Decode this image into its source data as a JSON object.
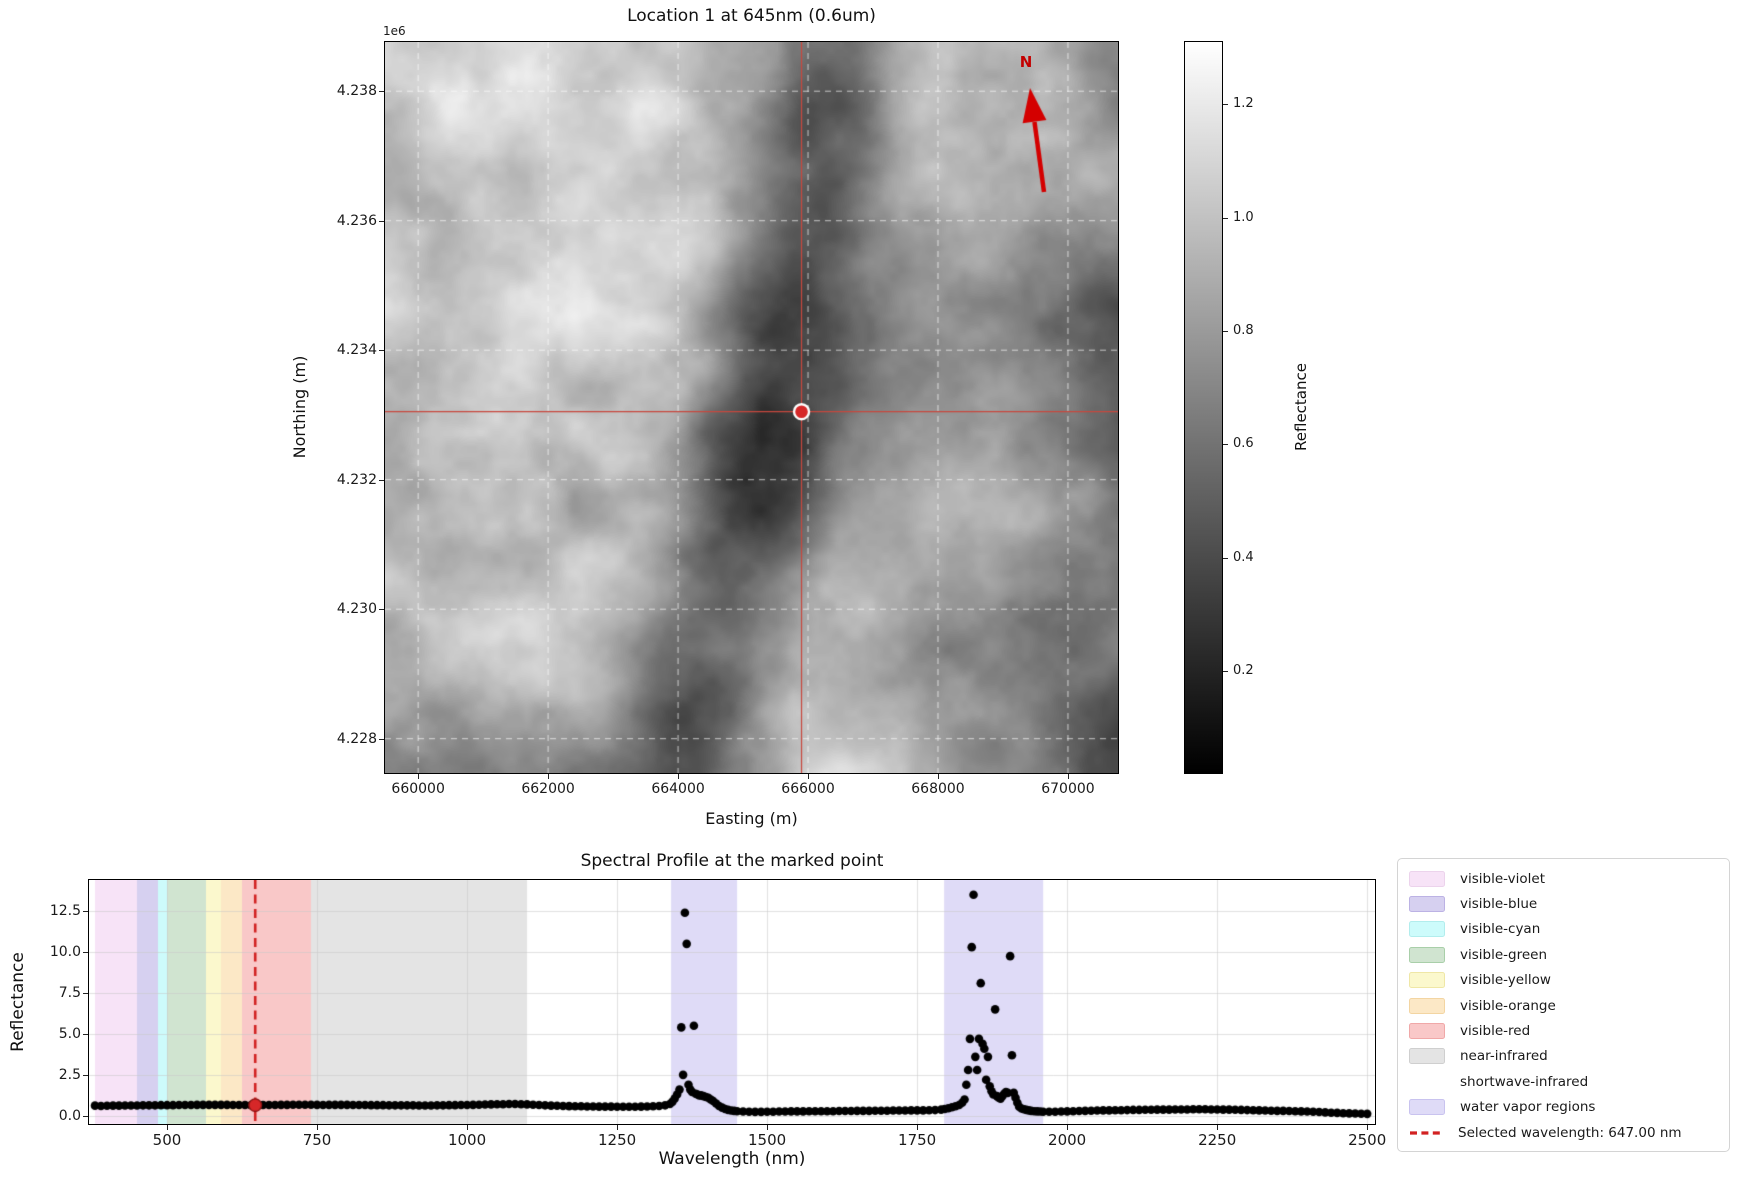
{
  "chart_data": [
    {
      "type": "heatmap",
      "title": "Location 1 at 645nm (0.6um)",
      "xlabel": "Easting (m)",
      "ylabel": "Northing (m)",
      "offset_text": "1e6",
      "north_label": "N",
      "cmap": "gray",
      "grid": "white-dashed",
      "xlim": [
        659490,
        670770
      ],
      "ylim": [
        4227470,
        4238760
      ],
      "x_ticks": [
        660000,
        662000,
        664000,
        666000,
        668000,
        670000
      ],
      "x_tick_labels": [
        "660000",
        "662000",
        "664000",
        "666000",
        "668000",
        "670000"
      ],
      "y_ticks": [
        4238000,
        4236000,
        4234000,
        4232000,
        4230000,
        4228000
      ],
      "y_tick_labels": [
        "4.238",
        "4.236",
        "4.234",
        "4.232",
        "4.230",
        "4.228"
      ],
      "marker": {
        "easting": 665900,
        "northing": 4233050,
        "color": "#d62728",
        "edge": "#ffffff"
      },
      "crosshair_color": "#c8473d",
      "colorbar": {
        "label": "Reflectance",
        "vmin": 0.02,
        "vmax": 1.31,
        "ticks": [
          1.2,
          1.0,
          0.8,
          0.6,
          0.4,
          0.2
        ],
        "tick_labels": [
          "1.2",
          "1.0",
          "0.8",
          "0.6",
          "0.4",
          "0.2"
        ]
      }
    },
    {
      "type": "scatter",
      "title": "Spectral Profile at the marked point",
      "xlabel": "Wavelength (nm)",
      "ylabel": "Reflectance",
      "xlim": [
        370,
        2513
      ],
      "ylim": [
        -0.5,
        14.4
      ],
      "grid": true,
      "point_color": "#000000",
      "x_ticks": [
        500,
        750,
        1000,
        1250,
        1500,
        1750,
        2000,
        2250,
        2500
      ],
      "x_tick_labels": [
        "500",
        "750",
        "1000",
        "1250",
        "1500",
        "1750",
        "2000",
        "2250",
        "2500"
      ],
      "y_ticks": [
        0.0,
        2.5,
        5.0,
        7.5,
        10.0,
        12.5
      ],
      "y_tick_labels": [
        "0.0",
        "2.5",
        "5.0",
        "7.5",
        "10.0",
        "12.5"
      ],
      "bands": [
        {
          "name": "shortwave-infrared",
          "xmin": 1100,
          "xmax": 2500,
          "color": "#ffffff"
        },
        {
          "name": "visible-violet",
          "xmin": 380,
          "xmax": 450,
          "color": "#f7e3f7"
        },
        {
          "name": "visible-blue",
          "xmin": 450,
          "xmax": 485,
          "color": "#d6d0f0"
        },
        {
          "name": "visible-cyan",
          "xmin": 485,
          "xmax": 500,
          "color": "#cdfbfb"
        },
        {
          "name": "visible-green",
          "xmin": 500,
          "xmax": 565,
          "color": "#d0e4d0"
        },
        {
          "name": "visible-yellow",
          "xmin": 565,
          "xmax": 590,
          "color": "#fbf8cd"
        },
        {
          "name": "visible-orange",
          "xmin": 590,
          "xmax": 625,
          "color": "#fce8c6"
        },
        {
          "name": "visible-red",
          "xmin": 625,
          "xmax": 740,
          "color": "#f9c8c8"
        },
        {
          "name": "near-infrared",
          "xmin": 740,
          "xmax": 1100,
          "color": "#e4e4e4"
        },
        {
          "name": "water-vapor-region-1",
          "xmin": 1340,
          "xmax": 1450,
          "color": "#dfdbf7"
        },
        {
          "name": "water-vapor-region-2",
          "xmin": 1795,
          "xmax": 1960,
          "color": "#dfdbf7"
        }
      ],
      "selected": {
        "wavelength": 647.0,
        "reflectance": 0.65,
        "line_color": "#d22222",
        "marker_color": "#d62728",
        "label": "Selected wavelength: 647.00 nm"
      },
      "legend": [
        {
          "label": "visible-violet",
          "kind": "patch",
          "color": "#f7e3f7",
          "border": "#ecd3ec"
        },
        {
          "label": "visible-blue",
          "kind": "patch",
          "color": "#d6d0f0",
          "border": "#bcb2e4"
        },
        {
          "label": "visible-cyan",
          "kind": "patch",
          "color": "#cdfbfb",
          "border": "#b2eded"
        },
        {
          "label": "visible-green",
          "kind": "patch",
          "color": "#d0e4d0",
          "border": "#a9cfa9"
        },
        {
          "label": "visible-yellow",
          "kind": "patch",
          "color": "#fbf8cd",
          "border": "#efe7a6"
        },
        {
          "label": "visible-orange",
          "kind": "patch",
          "color": "#fce8c6",
          "border": "#f3d5a2"
        },
        {
          "label": "visible-red",
          "kind": "patch",
          "color": "#f9c8c8",
          "border": "#f0a8a8"
        },
        {
          "label": "near-infrared",
          "kind": "patch",
          "color": "#e4e4e4",
          "border": "#cfcfcf"
        },
        {
          "label": "shortwave-infrared",
          "kind": "patch",
          "color": "#ffffff",
          "border": "transparent"
        },
        {
          "label": "water vapor regions",
          "kind": "patch",
          "color": "#dfdbf7",
          "border": "#c9c3ef"
        },
        {
          "label": "Selected wavelength: 647.00 nm",
          "kind": "dash",
          "color": "#d22222"
        }
      ],
      "x": [
        380,
        390,
        400,
        410,
        420,
        430,
        440,
        450,
        460,
        470,
        480,
        490,
        500,
        510,
        520,
        530,
        540,
        550,
        560,
        570,
        580,
        590,
        600,
        610,
        620,
        630,
        640,
        650,
        660,
        670,
        680,
        690,
        700,
        710,
        720,
        730,
        740,
        750,
        760,
        770,
        780,
        790,
        800,
        810,
        820,
        830,
        840,
        850,
        860,
        870,
        880,
        890,
        900,
        910,
        920,
        930,
        940,
        950,
        960,
        970,
        980,
        990,
        1000,
        1010,
        1020,
        1030,
        1040,
        1050,
        1060,
        1070,
        1080,
        1090,
        1100,
        1110,
        1120,
        1130,
        1140,
        1150,
        1160,
        1170,
        1180,
        1190,
        1200,
        1210,
        1220,
        1230,
        1240,
        1250,
        1260,
        1270,
        1280,
        1290,
        1300,
        1310,
        1320,
        1330,
        1338,
        1342,
        1346,
        1350,
        1354,
        1357,
        1360,
        1363,
        1366,
        1369,
        1372,
        1375,
        1378,
        1381,
        1384,
        1387,
        1390,
        1394,
        1398,
        1402,
        1406,
        1410,
        1415,
        1420,
        1425,
        1430,
        1435,
        1440,
        1445,
        1450,
        1460,
        1470,
        1480,
        1490,
        1500,
        1510,
        1520,
        1530,
        1540,
        1550,
        1560,
        1570,
        1580,
        1590,
        1600,
        1610,
        1620,
        1630,
        1640,
        1650,
        1660,
        1670,
        1680,
        1690,
        1700,
        1710,
        1720,
        1730,
        1740,
        1750,
        1760,
        1770,
        1780,
        1790,
        1796,
        1802,
        1808,
        1814,
        1820,
        1825,
        1829,
        1832,
        1835,
        1838,
        1841,
        1844,
        1847,
        1850,
        1853,
        1856,
        1859,
        1862,
        1865,
        1868,
        1871,
        1874,
        1877,
        1880,
        1883,
        1886,
        1889,
        1892,
        1895,
        1898,
        1901,
        1905,
        1908,
        1911,
        1914,
        1917,
        1920,
        1924,
        1928,
        1932,
        1936,
        1940,
        1945,
        1950,
        1955,
        1960,
        1970,
        1980,
        1990,
        2000,
        2010,
        2020,
        2030,
        2040,
        2050,
        2060,
        2070,
        2080,
        2090,
        2100,
        2110,
        2120,
        2130,
        2140,
        2150,
        2160,
        2170,
        2180,
        2190,
        2200,
        2210,
        2220,
        2230,
        2240,
        2250,
        2260,
        2270,
        2280,
        2290,
        2300,
        2310,
        2320,
        2330,
        2340,
        2350,
        2360,
        2370,
        2380,
        2390,
        2400,
        2410,
        2420,
        2430,
        2440,
        2450,
        2460,
        2470,
        2480,
        2490,
        2500
      ],
      "y": [
        0.62,
        0.6,
        0.61,
        0.62,
        0.62,
        0.63,
        0.63,
        0.63,
        0.64,
        0.64,
        0.64,
        0.65,
        0.65,
        0.65,
        0.66,
        0.66,
        0.66,
        0.67,
        0.67,
        0.67,
        0.67,
        0.67,
        0.67,
        0.66,
        0.66,
        0.66,
        0.65,
        0.65,
        0.66,
        0.66,
        0.66,
        0.67,
        0.67,
        0.68,
        0.68,
        0.68,
        0.68,
        0.67,
        0.66,
        0.67,
        0.67,
        0.67,
        0.67,
        0.66,
        0.66,
        0.66,
        0.65,
        0.65,
        0.65,
        0.64,
        0.64,
        0.64,
        0.64,
        0.64,
        0.63,
        0.63,
        0.63,
        0.64,
        0.64,
        0.65,
        0.65,
        0.66,
        0.66,
        0.67,
        0.68,
        0.69,
        0.7,
        0.71,
        0.71,
        0.72,
        0.72,
        0.71,
        0.7,
        0.68,
        0.66,
        0.64,
        0.62,
        0.61,
        0.6,
        0.59,
        0.58,
        0.58,
        0.57,
        0.57,
        0.56,
        0.56,
        0.56,
        0.55,
        0.55,
        0.55,
        0.55,
        0.56,
        0.57,
        0.58,
        0.6,
        0.64,
        0.72,
        0.85,
        1.05,
        1.3,
        1.6,
        5.4,
        2.5,
        12.4,
        10.5,
        1.9,
        1.6,
        1.45,
        5.5,
        1.35,
        1.3,
        1.25,
        1.25,
        1.2,
        1.15,
        1.1,
        1.0,
        0.9,
        0.75,
        0.6,
        0.5,
        0.42,
        0.36,
        0.32,
        0.3,
        0.28,
        0.26,
        0.25,
        0.24,
        0.24,
        0.25,
        0.25,
        0.26,
        0.26,
        0.27,
        0.27,
        0.27,
        0.28,
        0.28,
        0.28,
        0.28,
        0.28,
        0.29,
        0.29,
        0.29,
        0.3,
        0.3,
        0.3,
        0.31,
        0.31,
        0.31,
        0.32,
        0.32,
        0.32,
        0.33,
        0.33,
        0.33,
        0.34,
        0.35,
        0.38,
        0.42,
        0.46,
        0.52,
        0.58,
        0.66,
        0.8,
        1.0,
        1.9,
        2.8,
        4.7,
        10.3,
        13.5,
        3.6,
        2.8,
        4.7,
        8.1,
        4.4,
        4.1,
        2.2,
        3.6,
        1.8,
        1.5,
        1.3,
        6.5,
        1.2,
        1.1,
        1.05,
        1.2,
        1.35,
        1.45,
        1.4,
        9.75,
        3.7,
        1.4,
        1.1,
        0.8,
        0.55,
        0.45,
        0.4,
        0.36,
        0.33,
        0.3,
        0.28,
        0.27,
        0.26,
        0.25,
        0.25,
        0.25,
        0.26,
        0.27,
        0.28,
        0.29,
        0.3,
        0.31,
        0.32,
        0.33,
        0.33,
        0.34,
        0.34,
        0.35,
        0.36,
        0.36,
        0.37,
        0.37,
        0.38,
        0.38,
        0.38,
        0.39,
        0.39,
        0.39,
        0.4,
        0.4,
        0.4,
        0.39,
        0.39,
        0.38,
        0.38,
        0.37,
        0.36,
        0.35,
        0.34,
        0.33,
        0.32,
        0.31,
        0.3,
        0.3,
        0.29,
        0.28,
        0.27,
        0.26,
        0.25,
        0.23,
        0.21,
        0.19,
        0.18,
        0.16,
        0.15,
        0.14,
        0.13,
        0.12
      ]
    }
  ]
}
